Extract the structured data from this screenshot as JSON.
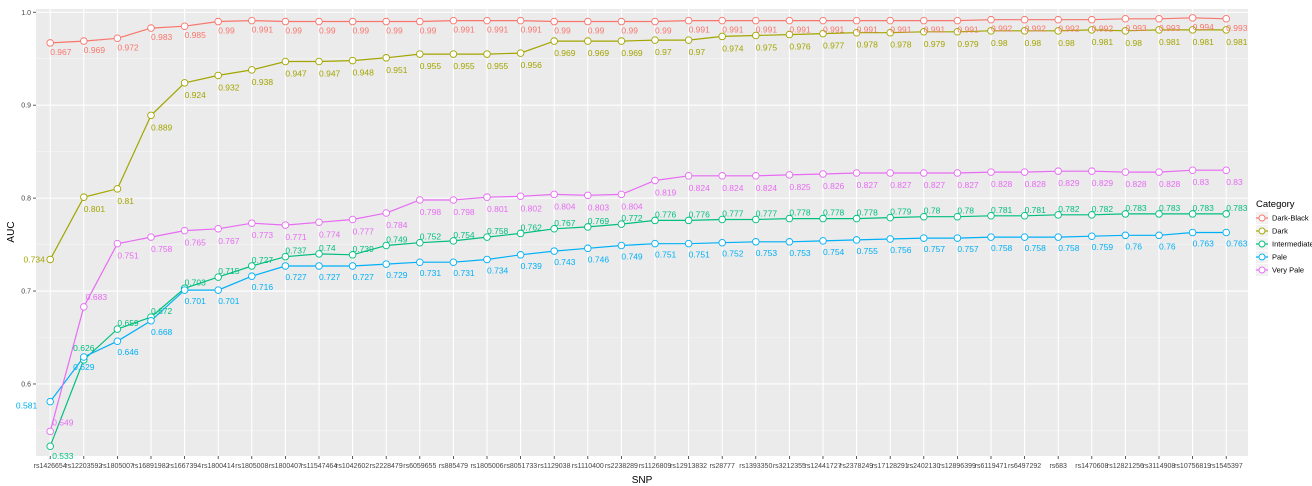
{
  "chart_data": {
    "type": "line",
    "xlabel": "SNP",
    "ylabel": "AUC",
    "ylim": [
      0.5,
      1.0
    ],
    "yticks": [
      "0.6",
      "0.7",
      "0.8",
      "0.9",
      "1.0"
    ],
    "grid": true,
    "legend_position": "right",
    "legend_title": "Category",
    "categories": [
      "rs1426654",
      "rs12203592",
      "rs1805007",
      "rs16891982",
      "rs1667394",
      "rs1800414",
      "rs1805008",
      "rs1800407",
      "rs11547464",
      "rs1042602",
      "rs2228479",
      "rs6059655",
      "rs885479",
      "rs1805006",
      "rs8051733",
      "rs1129038",
      "rs1110400",
      "rs2238289",
      "rs1126809",
      "rs12913832",
      "rs28777",
      "rs1393350",
      "rs3212355",
      "rs12441727",
      "rs2378249",
      "rs17128291",
      "rs2402130",
      "rs12896399",
      "rs6119471",
      "rs6497292",
      "rs683",
      "rs1470608",
      "rs12821256",
      "rs3114908",
      "rs10756819",
      "rs1545397"
    ],
    "series": [
      {
        "name": "Dark-Black",
        "color": "#F8766D",
        "values": [
          0.967,
          0.969,
          0.972,
          0.983,
          0.985,
          0.99,
          0.991,
          0.99,
          0.99,
          0.99,
          0.99,
          0.99,
          0.991,
          0.991,
          0.991,
          0.99,
          0.99,
          0.99,
          0.99,
          0.991,
          0.991,
          0.991,
          0.991,
          0.991,
          0.991,
          0.991,
          0.991,
          0.991,
          0.992,
          0.992,
          0.992,
          0.992,
          0.993,
          0.993,
          0.994,
          0.993
        ]
      },
      {
        "name": "Dark",
        "color": "#A3A500",
        "values": [
          0.734,
          0.801,
          0.81,
          0.889,
          0.924,
          0.932,
          0.938,
          0.947,
          0.947,
          0.948,
          0.951,
          0.955,
          0.955,
          0.955,
          0.956,
          0.969,
          0.969,
          0.969,
          0.97,
          0.97,
          0.974,
          0.975,
          0.976,
          0.977,
          0.978,
          0.978,
          0.979,
          0.979,
          0.98,
          0.98,
          0.98,
          0.981,
          0.98,
          0.981,
          0.981,
          0.981
        ]
      },
      {
        "name": "Intermediate",
        "color": "#00BF7D",
        "values": [
          0.533,
          0.626,
          0.659,
          0.672,
          0.703,
          0.715,
          0.727,
          0.737,
          0.74,
          0.739,
          0.749,
          0.752,
          0.754,
          0.758,
          0.762,
          0.767,
          0.769,
          0.772,
          0.776,
          0.776,
          0.777,
          0.777,
          0.778,
          0.778,
          0.778,
          0.779,
          0.78,
          0.78,
          0.781,
          0.781,
          0.782,
          0.782,
          0.783,
          0.783,
          0.783,
          0.783
        ]
      },
      {
        "name": "Pale",
        "color": "#00B0F6",
        "values": [
          0.581,
          0.629,
          0.646,
          0.668,
          0.701,
          0.701,
          0.716,
          0.727,
          0.727,
          0.727,
          0.729,
          0.731,
          0.731,
          0.734,
          0.739,
          0.743,
          0.746,
          0.749,
          0.751,
          0.751,
          0.752,
          0.753,
          0.753,
          0.754,
          0.755,
          0.756,
          0.757,
          0.757,
          0.758,
          0.758,
          0.758,
          0.759,
          0.76,
          0.76,
          0.763,
          0.763
        ]
      },
      {
        "name": "Very Pale",
        "color": "#E76BF3",
        "values": [
          0.549,
          0.683,
          0.751,
          0.758,
          0.765,
          0.767,
          0.773,
          0.771,
          0.774,
          0.777,
          0.784,
          0.798,
          0.798,
          0.801,
          0.802,
          0.804,
          0.803,
          0.804,
          0.819,
          0.824,
          0.824,
          0.824,
          0.825,
          0.826,
          0.827,
          0.827,
          0.827,
          0.827,
          0.828,
          0.828,
          0.829,
          0.829,
          0.828,
          0.828,
          0.83,
          0.83
        ]
      }
    ]
  }
}
